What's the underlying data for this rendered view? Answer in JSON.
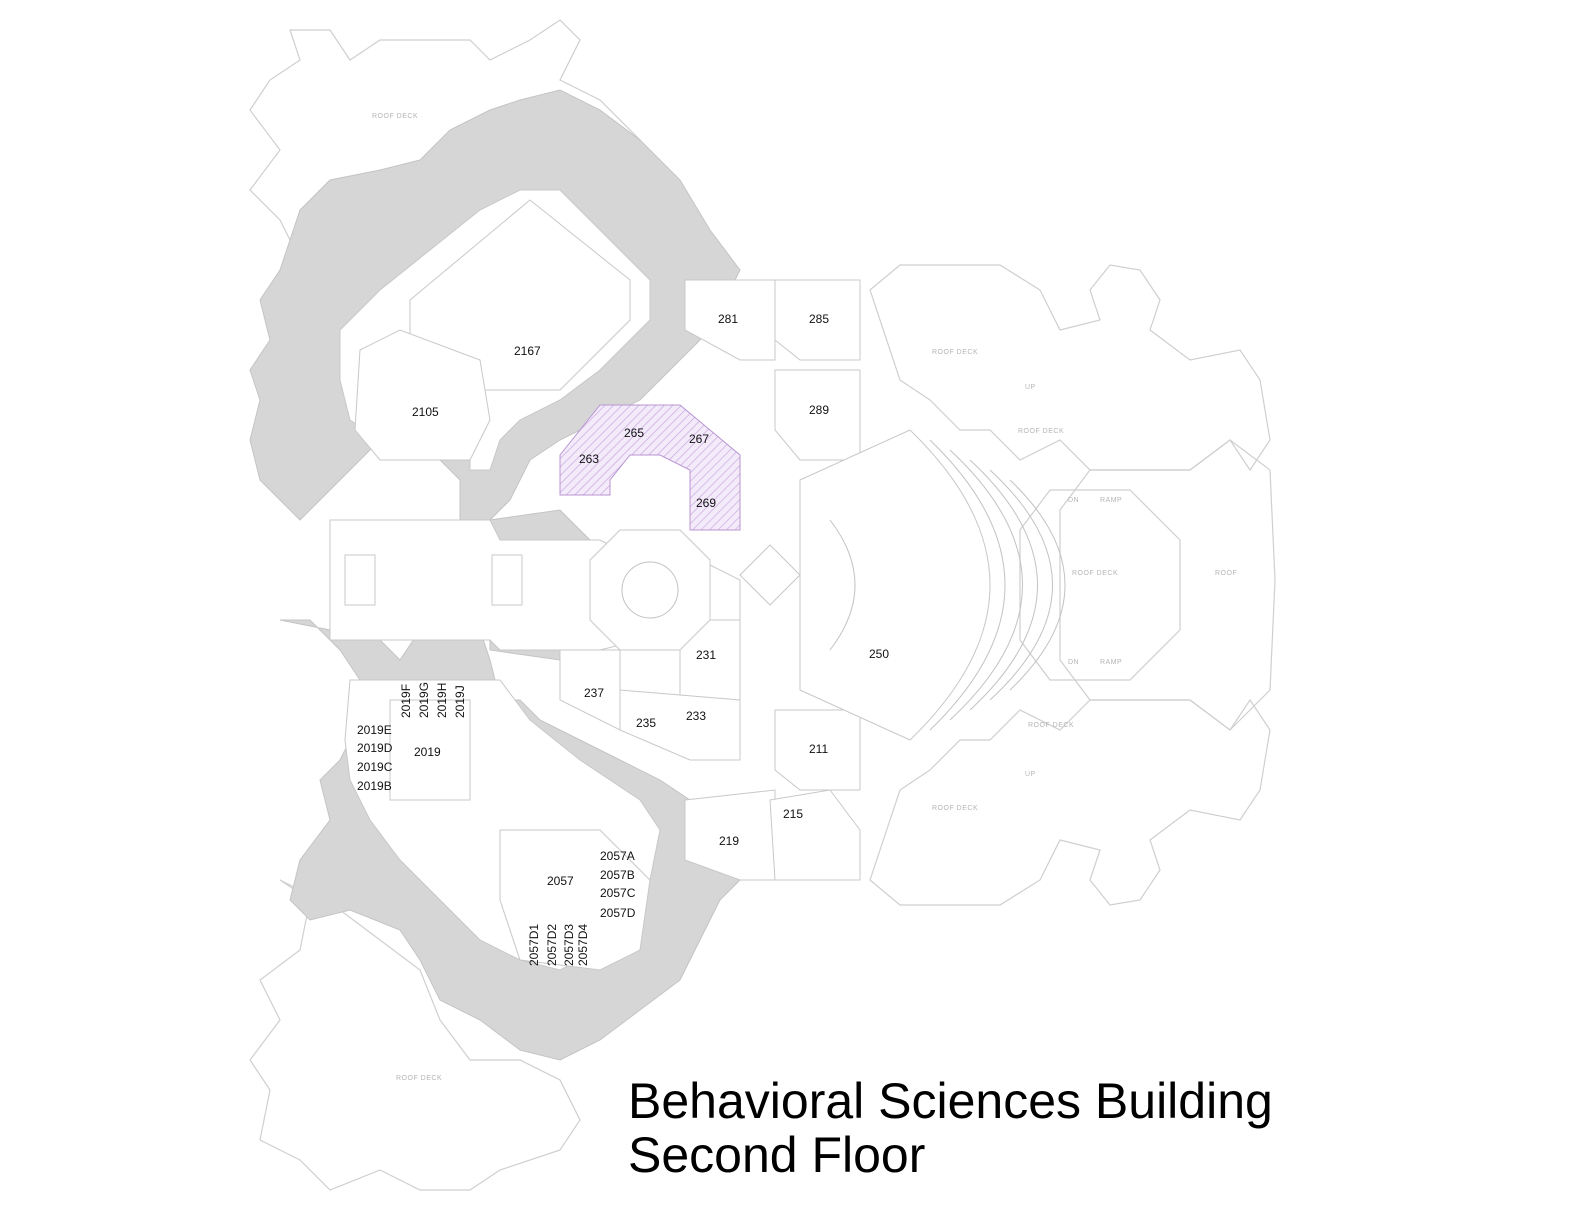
{
  "title": {
    "line1": "Behavioral Sciences Building",
    "line2": "Second Floor"
  },
  "colors": {
    "background": "#ffffff",
    "wall_mass": "#d6d6d6",
    "outline": "#cfcfcf",
    "highlight_hatch": "#c9a8df",
    "elevator_blue": "#bcd8f0"
  },
  "annotations": {
    "roof_deck": "ROOF DECK",
    "roof": "ROOF",
    "up": "UP",
    "dn": "DN",
    "ramp": "RAMP"
  },
  "rooms": [
    {
      "id": "2167",
      "label": "2167"
    },
    {
      "id": "2105",
      "label": "2105"
    },
    {
      "id": "281",
      "label": "281"
    },
    {
      "id": "285",
      "label": "285"
    },
    {
      "id": "289",
      "label": "289"
    },
    {
      "id": "265",
      "label": "265",
      "highlighted": true
    },
    {
      "id": "267",
      "label": "267",
      "highlighted": true
    },
    {
      "id": "263",
      "label": "263",
      "highlighted": true
    },
    {
      "id": "269",
      "label": "269",
      "highlighted": true
    },
    {
      "id": "250",
      "label": "250"
    },
    {
      "id": "231",
      "label": "231"
    },
    {
      "id": "237",
      "label": "237"
    },
    {
      "id": "233",
      "label": "233"
    },
    {
      "id": "235",
      "label": "235"
    },
    {
      "id": "211",
      "label": "211"
    },
    {
      "id": "215",
      "label": "215"
    },
    {
      "id": "219",
      "label": "219"
    },
    {
      "id": "2019",
      "label": "2019"
    },
    {
      "id": "2019B",
      "label": "2019B"
    },
    {
      "id": "2019C",
      "label": "2019C"
    },
    {
      "id": "2019D",
      "label": "2019D"
    },
    {
      "id": "2019E",
      "label": "2019E"
    },
    {
      "id": "2019F",
      "label": "2019F"
    },
    {
      "id": "2019G",
      "label": "2019G"
    },
    {
      "id": "2019H",
      "label": "2019H"
    },
    {
      "id": "2019J",
      "label": "2019J"
    },
    {
      "id": "2057",
      "label": "2057"
    },
    {
      "id": "2057A",
      "label": "2057A"
    },
    {
      "id": "2057B",
      "label": "2057B"
    },
    {
      "id": "2057C",
      "label": "2057C"
    },
    {
      "id": "2057D",
      "label": "2057D"
    },
    {
      "id": "2057D1",
      "label": "2057D1"
    },
    {
      "id": "2057D2",
      "label": "2057D2"
    },
    {
      "id": "2057D3",
      "label": "2057D3"
    },
    {
      "id": "2057D4",
      "label": "2057D4"
    }
  ]
}
